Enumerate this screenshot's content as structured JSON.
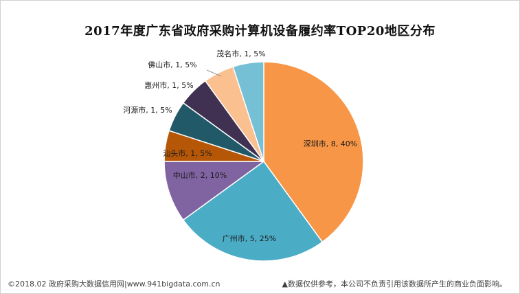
{
  "chart_data": {
    "type": "pie",
    "title": "2017年度广东省政府采购计算机设备履约率TOP20地区分布",
    "slices": [
      {
        "label": "深圳市, 8, 40%",
        "name": "深圳市",
        "value": 8,
        "percent": 40,
        "color": "#f79646"
      },
      {
        "label": "广州市, 5, 25%",
        "name": "广州市",
        "value": 5,
        "percent": 25,
        "color": "#4bacc6"
      },
      {
        "label": "中山市, 2, 10%",
        "name": "中山市",
        "value": 2,
        "percent": 10,
        "color": "#8064a2"
      },
      {
        "label": "汕头市, 1, 5%",
        "name": "汕头市",
        "value": 1,
        "percent": 5,
        "color": "#b65708"
      },
      {
        "label": "河源市, 1, 5%",
        "name": "河源市",
        "value": 1,
        "percent": 5,
        "color": "#215968"
      },
      {
        "label": "惠州市, 1, 5%",
        "name": "惠州市",
        "value": 1,
        "percent": 5,
        "color": "#403152"
      },
      {
        "label": "佛山市, 1, 5%",
        "name": "佛山市",
        "value": 1,
        "percent": 5,
        "color": "#fac090"
      },
      {
        "label": "茂名市, 1, 5%",
        "name": "茂名市",
        "value": 1,
        "percent": 5,
        "color": "#76c0d6"
      }
    ]
  },
  "footer": {
    "source": "©2018.02 政府采购大数据信用网|www.941bigdata.com.cn",
    "disclaimer": "▲数据仅供参考，本公司不负责引用该数据所产生的商业负面影响。"
  }
}
